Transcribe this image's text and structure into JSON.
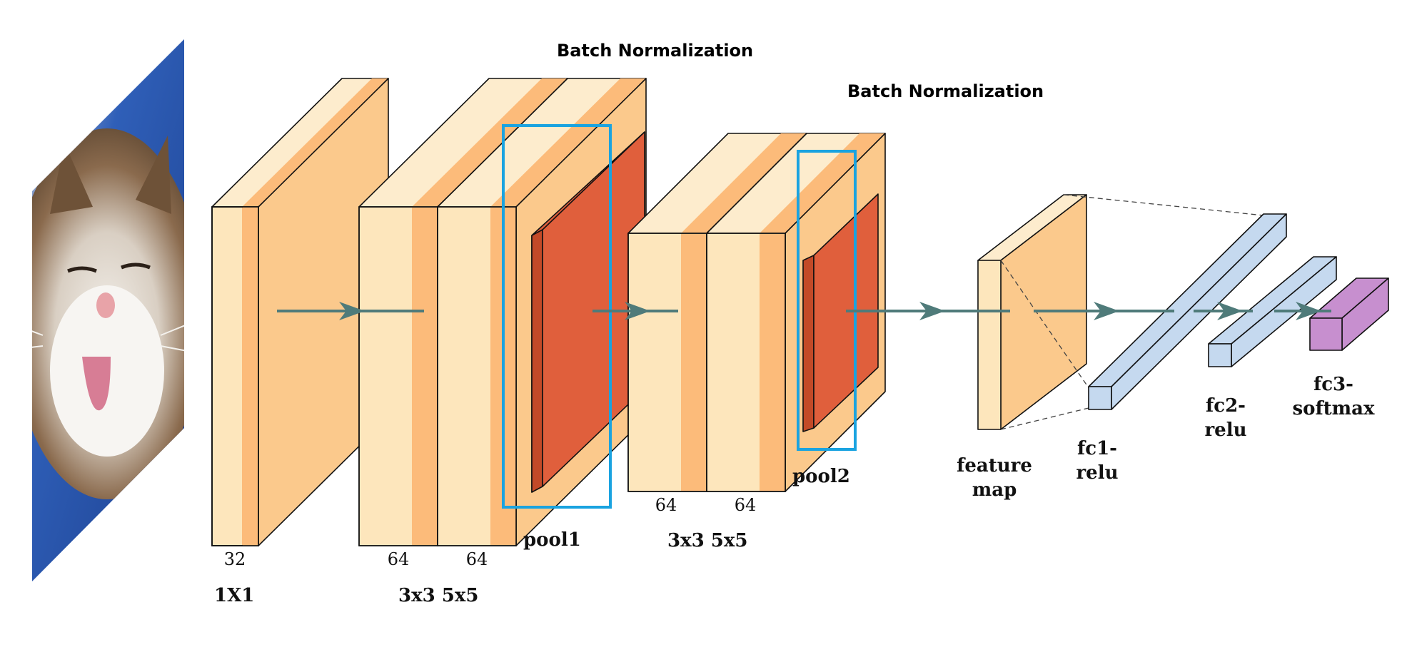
{
  "colors": {
    "face_light": "#fde6bc",
    "face_stripe": "#fcbb7a",
    "top_light": "#fdeccd",
    "side_light": "#fbc98c",
    "red_front": "#e05f3c",
    "red_side": "#c34a28",
    "blue_box": "#1aa3e0",
    "arrow": "#4f7b7a",
    "fc_blue": "#c5d9ef",
    "fc_purple": "#c78fcf",
    "outline": "#111111"
  },
  "input": {
    "icon": "cat-photo-icon"
  },
  "batch_norm": [
    {
      "label": "Batch Normalization"
    },
    {
      "label": "Batch Normalization"
    }
  ],
  "blocks": {
    "conv1": {
      "depth": "32",
      "caption": "1X1"
    },
    "conv2": {
      "depths": [
        "64",
        "64"
      ],
      "caption": "3x3 5x5"
    },
    "pool1": {
      "label": "pool1"
    },
    "conv3": {
      "depths": [
        "64",
        "64"
      ],
      "caption": "3x3 5x5"
    },
    "pool2": {
      "label": "pool2"
    }
  },
  "feature_map": {
    "label_lines": [
      "feature",
      "map"
    ]
  },
  "fc": [
    {
      "label_lines": [
        "fc1-",
        "relu"
      ]
    },
    {
      "label_lines": [
        "fc2-",
        "relu"
      ]
    },
    {
      "label_lines": [
        "fc3-",
        "softmax"
      ]
    }
  ]
}
